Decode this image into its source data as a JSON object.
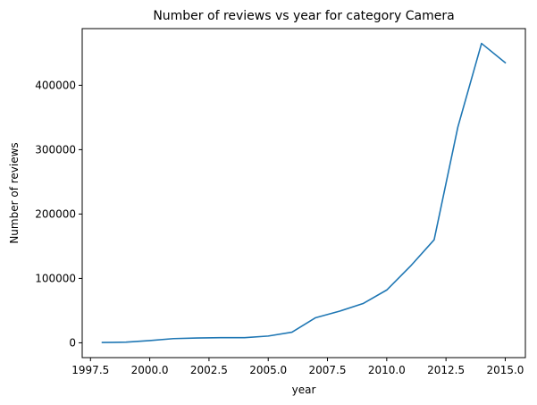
{
  "chart_data": {
    "type": "line",
    "title": "Number of reviews vs year for category Camera",
    "xlabel": "year",
    "ylabel": "Number of reviews",
    "xlim": [
      1997.15,
      2015.85
    ],
    "ylim": [
      -23000,
      488000
    ],
    "x_ticks": [
      1997.5,
      2000.0,
      2002.5,
      2005.0,
      2007.5,
      2010.0,
      2012.5,
      2015.0
    ],
    "x_tick_labels": [
      "1997.5",
      "2000.0",
      "2002.5",
      "2005.0",
      "2007.5",
      "2010.0",
      "2012.5",
      "2015.0"
    ],
    "y_ticks": [
      0,
      100000,
      200000,
      300000,
      400000
    ],
    "y_tick_labels": [
      "0",
      "100000",
      "200000",
      "300000",
      "400000"
    ],
    "grid": false,
    "series": [
      {
        "color": "#1f77b4",
        "x": [
          1998,
          1999,
          2000,
          2001,
          2002,
          2003,
          2004,
          2005,
          2006,
          2007,
          2008,
          2009,
          2010,
          2011,
          2012,
          2013,
          2014,
          2015
        ],
        "y": [
          500,
          1000,
          3500,
          6500,
          7500,
          8000,
          8000,
          10500,
          16500,
          39000,
          49000,
          61000,
          82000,
          119000,
          160000,
          335000,
          465000,
          435000
        ]
      }
    ]
  }
}
